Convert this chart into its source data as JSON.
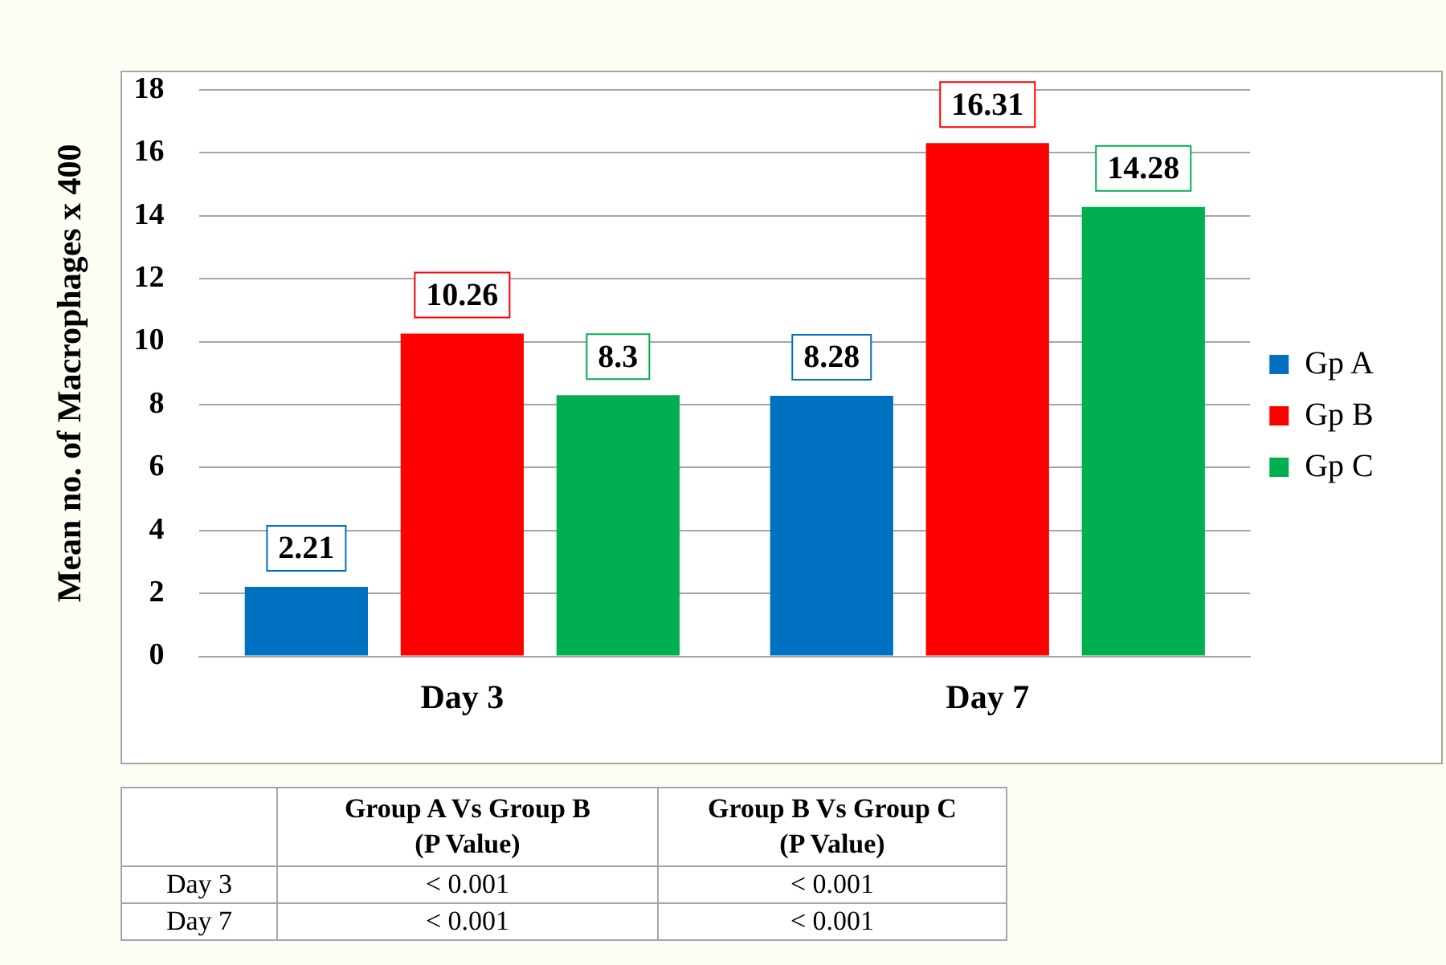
{
  "chart_data": {
    "type": "bar",
    "ylabel": "Mean no. of Macrophages x 400",
    "categories": [
      "Day 3",
      "Day 7"
    ],
    "series": [
      {
        "name": "Gp A",
        "color": "#0070c0",
        "values": [
          2.21,
          8.28
        ]
      },
      {
        "name": "Gp B",
        "color": "#ff0000",
        "values": [
          10.26,
          16.31
        ]
      },
      {
        "name": "Gp C",
        "color": "#00b050",
        "values": [
          8.3,
          14.28
        ]
      }
    ],
    "ylim": [
      0,
      18
    ],
    "yticks": [
      0,
      2,
      4,
      6,
      8,
      10,
      12,
      14,
      16,
      18
    ],
    "grid": "y",
    "legend": "right",
    "data_labels": true,
    "annotations": [
      "Group A Vs Group B\n(P Value)",
      "Group B Vs Group C\n(P Value)",
      "Day 3",
      "< 0.001",
      "< 0.001",
      "Day 7",
      "< 0.001",
      "< 0.001"
    ]
  }
}
